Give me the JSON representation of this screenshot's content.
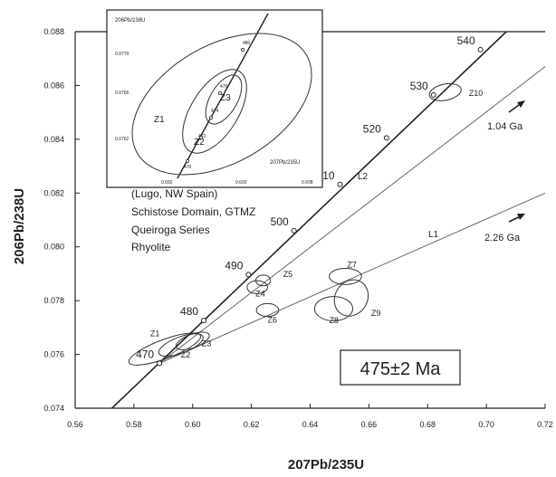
{
  "chart_data": {
    "type": "scatter",
    "subtype": "U-Pb concordia diagram with inset",
    "xlabel": "207Pb/235U",
    "ylabel": "206Pb/238U",
    "xlim": [
      0.56,
      0.72
    ],
    "ylim": [
      0.074,
      0.088
    ],
    "xticks": [
      "0.56",
      "0.58",
      "0.60",
      "0.62",
      "0.64",
      "0.66",
      "0.68",
      "0.70",
      "0.72"
    ],
    "yticks": [
      "0.074",
      "0.076",
      "0.078",
      "0.080",
      "0.082",
      "0.084",
      "0.086",
      "0.088"
    ],
    "grid": false,
    "concordia_ages_ma": [
      {
        "age": "470",
        "x": 0.5887,
        "y": 0.07567
      },
      {
        "age": "480",
        "x": 0.6038,
        "y": 0.07726
      },
      {
        "age": "490",
        "x": 0.619,
        "y": 0.07897
      },
      {
        "age": "500",
        "x": 0.6345,
        "y": 0.0806
      },
      {
        "age": "510",
        "x": 0.6502,
        "y": 0.08232
      },
      {
        "age": "520",
        "x": 0.666,
        "y": 0.08405
      },
      {
        "age": "530",
        "x": 0.682,
        "y": 0.08565
      },
      {
        "age": "540",
        "x": 0.698,
        "y": 0.08733
      }
    ],
    "discordia": [
      {
        "label": "L2",
        "from": [
          0.5887,
          0.07567
        ],
        "to": [
          0.72,
          0.0867
        ],
        "upper_intercept_label": "1.04 Ga"
      },
      {
        "label": "L1",
        "from": [
          0.5887,
          0.07567
        ],
        "to": [
          0.72,
          0.082
        ],
        "upper_intercept_label": "2.26 Ga"
      }
    ],
    "ellipses": [
      {
        "label": "Z1",
        "cx": 0.5905,
        "cy": 0.0762,
        "rx": 0.013,
        "ry": 0.00035,
        "angle": 0.36
      },
      {
        "label": "Z2",
        "cx": 0.596,
        "cy": 0.07635,
        "rx": 0.008,
        "ry": 0.0003,
        "angle": 0.36
      },
      {
        "label": "Z3",
        "cx": 0.6,
        "cy": 0.0765,
        "rx": 0.006,
        "ry": 0.00025,
        "angle": 0.36
      },
      {
        "label": "Z4",
        "cx": 0.622,
        "cy": 0.0785,
        "rx": 0.0035,
        "ry": 0.00024,
        "angle": 0.0
      },
      {
        "label": "Z5",
        "cx": 0.624,
        "cy": 0.07875,
        "rx": 0.0025,
        "ry": 0.0002,
        "angle": 0.0
      },
      {
        "label": "Z6",
        "cx": 0.6255,
        "cy": 0.07765,
        "rx": 0.0038,
        "ry": 0.00024,
        "angle": 0.0
      },
      {
        "label": "Z7",
        "cx": 0.652,
        "cy": 0.0789,
        "rx": 0.0055,
        "ry": 0.0003,
        "angle": 0.0
      },
      {
        "label": "Z8",
        "cx": 0.648,
        "cy": 0.0777,
        "rx": 0.0065,
        "ry": 0.00045,
        "angle": 0.0
      },
      {
        "label": "Z9",
        "cx": 0.654,
        "cy": 0.0781,
        "rx": 0.0055,
        "ry": 0.0007,
        "angle": -0.55
      },
      {
        "label": "Z10",
        "cx": 0.686,
        "cy": 0.08575,
        "rx": 0.0055,
        "ry": 0.0003,
        "angle": 0.2
      }
    ],
    "annotations": {
      "location": "(Lugo, NW Spain)",
      "domain": "Schistose Domain, GTMZ",
      "series": "Queiroga Series",
      "rock": "Rhyolite",
      "age_box": "475±2 Ma",
      "l2_label": "L2",
      "l1_label": "L1",
      "ga_upper_l2": "1.04 Ga",
      "ga_upper_l1": "2.26 Ga"
    },
    "inset": {
      "axis_y_label": "206Pb/238U",
      "axis_x_label": "207Pb/235U",
      "yticks": [
        "0.0770",
        "0.0766",
        "0.0762"
      ],
      "xticks": [
        "0.592",
        "0.600",
        "0.608"
      ],
      "ages": [
        "470",
        "480",
        "476",
        "474",
        "472"
      ],
      "ellipse_labels": [
        "Z1",
        "Z2",
        "Z3"
      ]
    }
  }
}
